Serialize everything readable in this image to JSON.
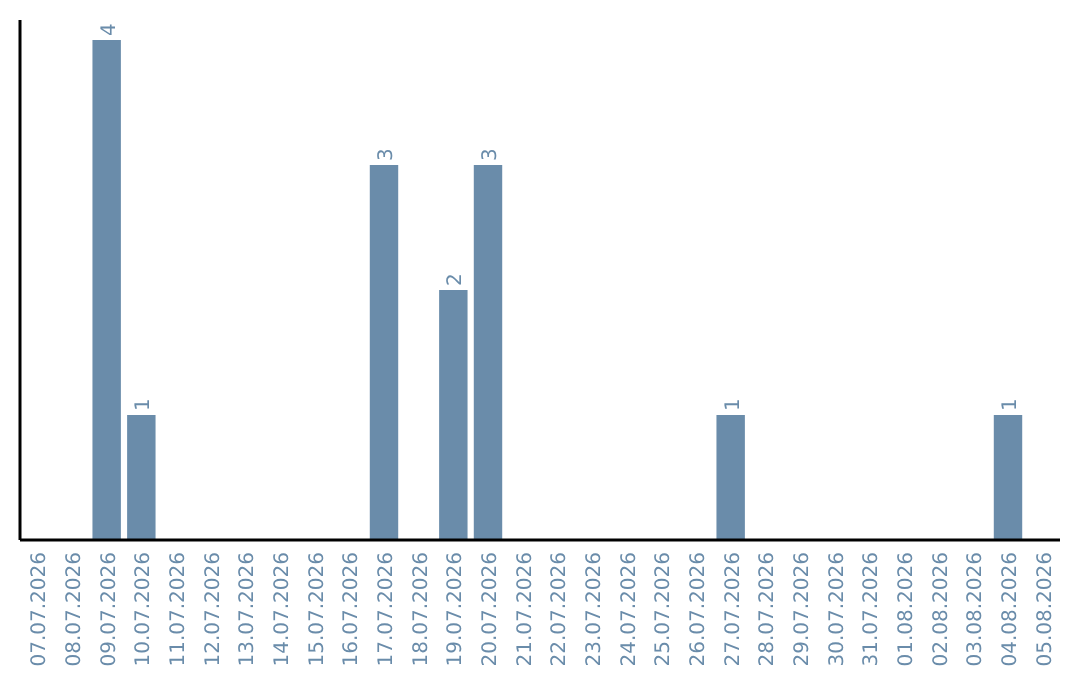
{
  "chart_data": {
    "type": "bar",
    "categories": [
      "07.07.2026",
      "08.07.2026",
      "09.07.2026",
      "10.07.2026",
      "11.07.2026",
      "12.07.2026",
      "13.07.2026",
      "14.07.2026",
      "15.07.2026",
      "16.07.2026",
      "17.07.2026",
      "18.07.2026",
      "19.07.2026",
      "20.07.2026",
      "21.07.2026",
      "22.07.2026",
      "23.07.2026",
      "24.07.2026",
      "25.07.2026",
      "26.07.2026",
      "27.07.2026",
      "28.07.2026",
      "29.07.2026",
      "30.07.2026",
      "31.07.2026",
      "01.08.2026",
      "02.08.2026",
      "03.08.2026",
      "04.08.2026",
      "05.08.2026"
    ],
    "values": [
      0,
      0,
      4,
      1,
      0,
      0,
      0,
      0,
      0,
      0,
      3,
      0,
      2,
      3,
      0,
      0,
      0,
      0,
      0,
      0,
      1,
      0,
      0,
      0,
      0,
      0,
      0,
      0,
      1,
      0
    ],
    "value_labels": [
      null,
      null,
      "4",
      "1",
      null,
      null,
      null,
      null,
      null,
      null,
      "3",
      null,
      "2",
      "3",
      null,
      null,
      null,
      null,
      null,
      null,
      "1",
      null,
      null,
      null,
      null,
      null,
      null,
      null,
      "1",
      null
    ],
    "color": "#6a8caa",
    "tick_labels": "x"
  }
}
